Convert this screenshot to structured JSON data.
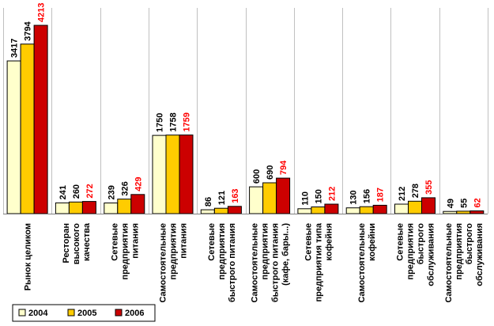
{
  "chart_data": {
    "type": "bar",
    "categories": [
      [
        "Рынок целиком"
      ],
      [
        "Ресторан",
        "высокого",
        "качества"
      ],
      [
        "Сетевые",
        "предприятия",
        "питания"
      ],
      [
        "Самостоятельные",
        "предприятия",
        "питания"
      ],
      [
        "Сетевые",
        "предприятия",
        "быстрого питания"
      ],
      [
        "Самостоятельные",
        "предприятия",
        "быстрого питания",
        "(кафе, бары...)"
      ],
      [
        "Сетевые",
        "предприятия типа",
        "кофейня"
      ],
      [
        "Самостоятельные",
        "кофейни"
      ],
      [
        "Сетевые",
        "предприятия",
        "быстрого",
        "обслуживания"
      ],
      [
        "Самостоятельные",
        "предприятия",
        "быстрого",
        "обслуживания"
      ]
    ],
    "series": [
      {
        "name": "2004",
        "color": "#ffffcc",
        "label_color": "#000000",
        "values": [
          3417,
          241,
          239,
          1750,
          86,
          600,
          110,
          130,
          212,
          49
        ],
        "labels": [
          "3417",
          "241",
          "239",
          "1750",
          "86",
          "600",
          "110",
          "130",
          "212",
          "49"
        ]
      },
      {
        "name": "2005",
        "color": "#ffcc00",
        "label_color": "#000000",
        "values": [
          3794,
          260,
          326,
          1758,
          121,
          690,
          150,
          156,
          278,
          55
        ],
        "labels": [
          "3794",
          "260",
          "326",
          "1758",
          "121",
          "690",
          "150",
          "156",
          "278",
          "55"
        ]
      },
      {
        "name": "2006",
        "color": "#cc0000",
        "label_color": "#ff0000",
        "values": [
          4213,
          272,
          429,
          1759,
          163,
          794,
          212,
          187,
          355,
          62
        ],
        "labels": [
          "4213",
          "272",
          "429",
          "1759",
          "163",
          "794",
          "212",
          "187",
          "355",
          "62"
        ]
      }
    ],
    "ylim": [
      0,
      4213
    ],
    "grid": "vertical",
    "legend": "bottom-left"
  }
}
